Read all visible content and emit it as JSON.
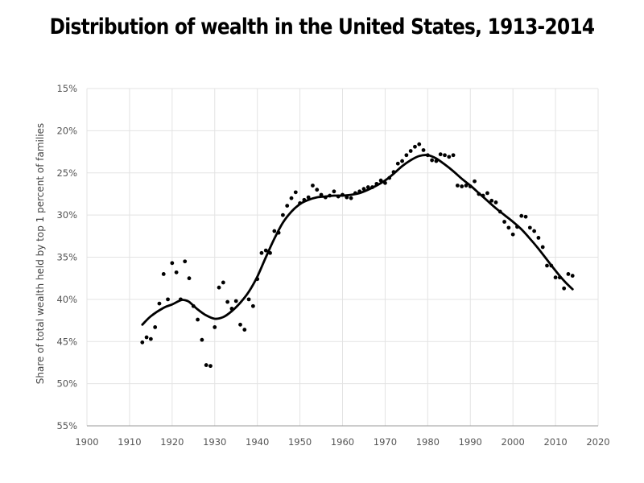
{
  "chart_data": {
    "type": "scatter",
    "title": "Distribution of wealth in the United States, 1913-2014",
    "xlabel": "",
    "ylabel": "Share of total wealth held by top 1 percent of families",
    "xlim": [
      1900,
      2020
    ],
    "ylim": [
      15,
      55
    ],
    "y_inverted": true,
    "grid": true,
    "x_ticks": [
      1900,
      1910,
      1920,
      1930,
      1940,
      1950,
      1960,
      1970,
      1980,
      1990,
      2000,
      2010,
      2020
    ],
    "x_tick_labels": [
      "1900",
      "1910",
      "1920",
      "1930",
      "1940",
      "1950",
      "1960",
      "1970",
      "1980",
      "1990",
      "2000",
      "2010",
      "2020"
    ],
    "y_ticks": [
      15,
      20,
      25,
      30,
      35,
      40,
      45,
      50,
      55
    ],
    "y_tick_labels": [
      "15%",
      "20%",
      "25%",
      "30%",
      "35%",
      "40%",
      "45%",
      "50%",
      "55%"
    ],
    "series": [
      {
        "kind": "points",
        "color": "#000000",
        "points": [
          [
            1913,
            45.1
          ],
          [
            1914,
            44.5
          ],
          [
            1915,
            44.7
          ],
          [
            1916,
            43.3
          ],
          [
            1917,
            40.5
          ],
          [
            1918,
            37.0
          ],
          [
            1919,
            40.0
          ],
          [
            1920,
            35.7
          ],
          [
            1921,
            36.8
          ],
          [
            1922,
            40.0
          ],
          [
            1923,
            35.5
          ],
          [
            1924,
            37.5
          ],
          [
            1925,
            40.8
          ],
          [
            1926,
            42.4
          ],
          [
            1927,
            44.8
          ],
          [
            1928,
            47.8
          ],
          [
            1929,
            47.9
          ],
          [
            1930,
            43.3
          ],
          [
            1931,
            38.6
          ],
          [
            1932,
            38.0
          ],
          [
            1933,
            40.3
          ],
          [
            1934,
            41.1
          ],
          [
            1935,
            40.2
          ],
          [
            1936,
            43.0
          ],
          [
            1937,
            43.6
          ],
          [
            1938,
            40.0
          ],
          [
            1939,
            40.8
          ],
          [
            1940,
            37.6
          ],
          [
            1941,
            34.5
          ],
          [
            1942,
            34.2
          ],
          [
            1943,
            34.5
          ],
          [
            1944,
            31.9
          ],
          [
            1945,
            32.1
          ],
          [
            1946,
            30.0
          ],
          [
            1947,
            28.9
          ],
          [
            1948,
            28.0
          ],
          [
            1949,
            27.3
          ],
          [
            1950,
            28.6
          ],
          [
            1951,
            28.2
          ],
          [
            1952,
            27.9
          ],
          [
            1953,
            26.5
          ],
          [
            1954,
            27.0
          ],
          [
            1955,
            27.6
          ],
          [
            1956,
            27.9
          ],
          [
            1957,
            27.7
          ],
          [
            1958,
            27.2
          ],
          [
            1959,
            27.8
          ],
          [
            1960,
            27.6
          ],
          [
            1961,
            27.9
          ],
          [
            1962,
            28.0
          ],
          [
            1963,
            27.4
          ],
          [
            1964,
            27.2
          ],
          [
            1965,
            26.9
          ],
          [
            1966,
            26.7
          ],
          [
            1967,
            26.7
          ],
          [
            1968,
            26.3
          ],
          [
            1969,
            25.9
          ],
          [
            1970,
            26.2
          ],
          [
            1971,
            25.6
          ],
          [
            1972,
            24.9
          ],
          [
            1973,
            23.9
          ],
          [
            1974,
            23.6
          ],
          [
            1975,
            22.9
          ],
          [
            1976,
            22.4
          ],
          [
            1977,
            21.9
          ],
          [
            1978,
            21.6
          ],
          [
            1979,
            22.3
          ],
          [
            1980,
            22.9
          ],
          [
            1981,
            23.5
          ],
          [
            1982,
            23.6
          ],
          [
            1983,
            22.8
          ],
          [
            1984,
            22.9
          ],
          [
            1985,
            23.1
          ],
          [
            1986,
            22.9
          ],
          [
            1987,
            26.5
          ],
          [
            1988,
            26.6
          ],
          [
            1989,
            26.5
          ],
          [
            1990,
            26.6
          ],
          [
            1991,
            26.0
          ],
          [
            1992,
            27.5
          ],
          [
            1993,
            27.7
          ],
          [
            1994,
            27.4
          ],
          [
            1995,
            28.3
          ],
          [
            1996,
            28.5
          ],
          [
            1997,
            29.6
          ],
          [
            1998,
            30.8
          ],
          [
            1999,
            31.5
          ],
          [
            2000,
            32.3
          ],
          [
            2001,
            31.4
          ],
          [
            2002,
            30.1
          ],
          [
            2003,
            30.2
          ],
          [
            2004,
            31.5
          ],
          [
            2005,
            31.9
          ],
          [
            2006,
            32.7
          ],
          [
            2007,
            33.8
          ],
          [
            2008,
            36.0
          ],
          [
            2009,
            36.0
          ],
          [
            2010,
            37.4
          ],
          [
            2011,
            37.4
          ],
          [
            2012,
            38.7
          ],
          [
            2013,
            37.0
          ],
          [
            2014,
            37.2
          ]
        ]
      },
      {
        "kind": "trend",
        "color": "#000000",
        "points": [
          [
            1913,
            43.0
          ],
          [
            1915,
            42.0
          ],
          [
            1918,
            41.0
          ],
          [
            1920,
            40.6
          ],
          [
            1922,
            40.1
          ],
          [
            1923,
            40.1
          ],
          [
            1924,
            40.3
          ],
          [
            1926,
            41.2
          ],
          [
            1928,
            41.9
          ],
          [
            1930,
            42.3
          ],
          [
            1932,
            42.1
          ],
          [
            1934,
            41.4
          ],
          [
            1936,
            40.4
          ],
          [
            1938,
            39.1
          ],
          [
            1940,
            37.3
          ],
          [
            1942,
            35.0
          ],
          [
            1944,
            32.8
          ],
          [
            1946,
            30.9
          ],
          [
            1948,
            29.6
          ],
          [
            1950,
            28.7
          ],
          [
            1952,
            28.2
          ],
          [
            1954,
            27.9
          ],
          [
            1956,
            27.8
          ],
          [
            1958,
            27.7
          ],
          [
            1960,
            27.7
          ],
          [
            1962,
            27.6
          ],
          [
            1964,
            27.4
          ],
          [
            1966,
            27.0
          ],
          [
            1968,
            26.5
          ],
          [
            1970,
            25.9
          ],
          [
            1972,
            25.1
          ],
          [
            1974,
            24.2
          ],
          [
            1976,
            23.5
          ],
          [
            1978,
            23.0
          ],
          [
            1980,
            22.9
          ],
          [
            1982,
            23.3
          ],
          [
            1984,
            24.0
          ],
          [
            1986,
            24.8
          ],
          [
            1988,
            25.7
          ],
          [
            1990,
            26.5
          ],
          [
            1992,
            27.4
          ],
          [
            1994,
            28.3
          ],
          [
            1996,
            29.2
          ],
          [
            1998,
            30.0
          ],
          [
            2000,
            30.8
          ],
          [
            2002,
            31.7
          ],
          [
            2004,
            32.8
          ],
          [
            2006,
            34.0
          ],
          [
            2008,
            35.3
          ],
          [
            2010,
            36.6
          ],
          [
            2012,
            37.8
          ],
          [
            2014,
            38.8
          ]
        ]
      }
    ]
  }
}
